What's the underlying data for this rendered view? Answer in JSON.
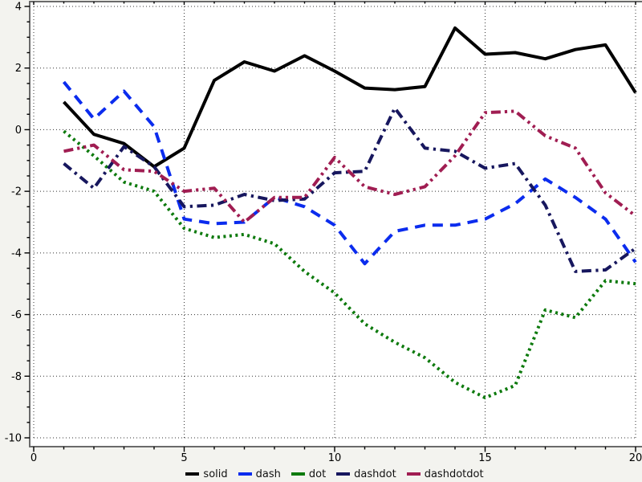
{
  "chart_data": {
    "type": "line",
    "title": "",
    "xlabel": "",
    "ylabel": "",
    "xlim": [
      0,
      20
    ],
    "ylim": [
      -10,
      4
    ],
    "x_major_ticks": [
      0,
      5,
      10,
      15,
      20
    ],
    "x_minor_step": 1,
    "y_major_ticks": [
      -10,
      -8,
      -6,
      -4,
      -2,
      0,
      2,
      4
    ],
    "y_minor_step": 0.5,
    "grid": "dotted, at major ticks both axes",
    "legend_position": "bottom-center",
    "x": [
      1,
      2,
      3,
      4,
      5,
      6,
      7,
      8,
      9,
      10,
      11,
      12,
      13,
      14,
      15,
      16,
      17,
      18,
      19,
      20
    ],
    "series": [
      {
        "name": "solid",
        "color": "#000000",
        "values": [
          0.9,
          -0.15,
          -0.45,
          -1.2,
          -0.6,
          1.6,
          2.2,
          1.9,
          2.4,
          1.9,
          1.35,
          1.3,
          1.4,
          3.3,
          2.45,
          2.5,
          2.3,
          2.6,
          2.75,
          1.2
        ]
      },
      {
        "name": "dash",
        "color": "#0b2cee",
        "values": [
          1.55,
          0.35,
          1.25,
          0.1,
          -2.9,
          -3.05,
          -3.0,
          -2.2,
          -2.5,
          -3.1,
          -4.35,
          -3.3,
          -3.1,
          -3.1,
          -2.9,
          -2.4,
          -1.6,
          -2.2,
          -2.9,
          -4.3
        ]
      },
      {
        "name": "dot",
        "color": "#0d7a0d",
        "values": [
          -0.05,
          -0.85,
          -1.7,
          -2.0,
          -3.2,
          -3.5,
          -3.4,
          -3.7,
          -4.6,
          -5.3,
          -6.3,
          -6.9,
          -7.4,
          -8.2,
          -8.7,
          -8.3,
          -5.85,
          -6.1,
          -4.9,
          -5.0
        ]
      },
      {
        "name": "dashdot",
        "color": "#17175e",
        "values": [
          -1.1,
          -1.9,
          -0.55,
          -1.2,
          -2.5,
          -2.45,
          -2.1,
          -2.3,
          -2.25,
          -1.4,
          -1.35,
          0.7,
          -0.6,
          -0.7,
          -1.25,
          -1.1,
          -2.45,
          -4.6,
          -4.55,
          -3.85
        ]
      },
      {
        "name": "dashdotdot",
        "color": "#a01d52",
        "values": [
          -0.7,
          -0.5,
          -1.3,
          -1.35,
          -2.0,
          -1.9,
          -3.0,
          -2.2,
          -2.2,
          -0.9,
          -1.85,
          -2.1,
          -1.85,
          -0.85,
          0.55,
          0.6,
          -0.2,
          -0.6,
          -2.05,
          -2.8
        ]
      }
    ],
    "colors": {
      "border": "#6a6a6a",
      "grid": "#333333",
      "tick": "#000000",
      "tick_label": "#000000",
      "plot_bg": "#ffffff",
      "margin_bg": "#f3f3ef"
    },
    "legend_labels": [
      "solid",
      "dash",
      "dot",
      "dashdot",
      "dashdotdot"
    ]
  }
}
